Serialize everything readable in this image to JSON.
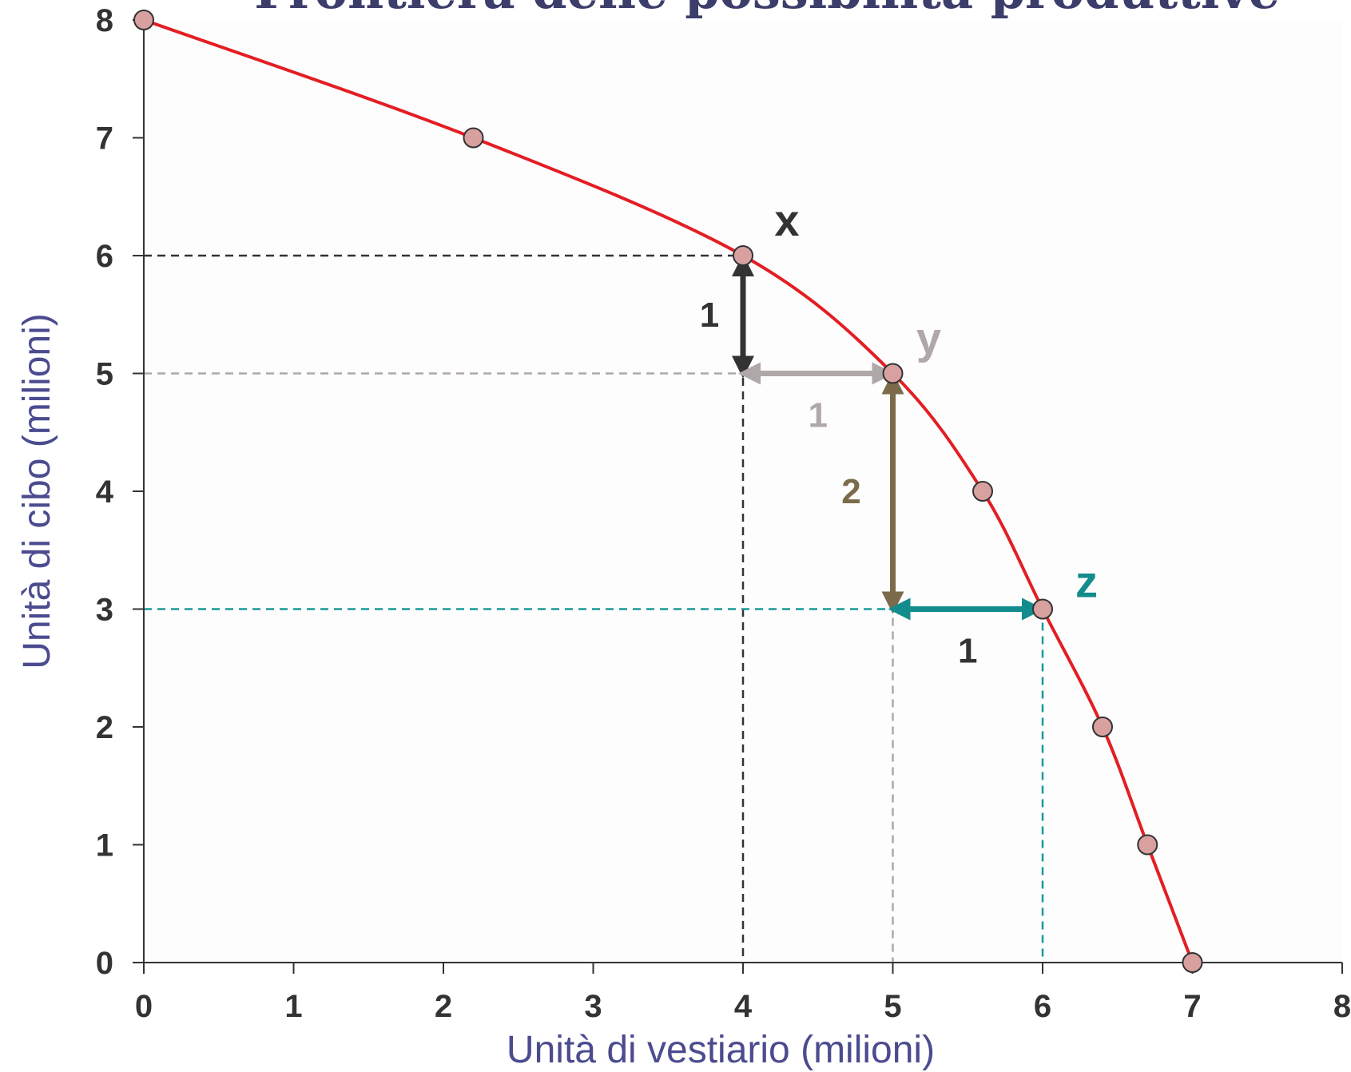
{
  "colors": {
    "curve": "#e31e24",
    "marker_fill": "#d9a0a0",
    "axis": "#333333",
    "title": "#3d3d6b",
    "axis_title": "#4b4b8f",
    "x_guide": "#333333",
    "y_guide": "#b0a8a8",
    "z_guide": "#1a9a9a",
    "arrow_dark": "#333333",
    "arrow_grey": "#b0a8a8",
    "arrow_brown": "#7b6b4b",
    "arrow_teal": "#128c8c"
  },
  "chart_data": {
    "type": "line",
    "title": "Frontiera delle possibilità produttive",
    "xlabel": "Unità di vestiario (milioni)",
    "ylabel": "Unità di cibo (milioni)",
    "xlim": [
      0,
      8
    ],
    "ylim": [
      0,
      8
    ],
    "xticks": [
      "0",
      "1",
      "2",
      "3",
      "4",
      "5",
      "6",
      "7",
      "8"
    ],
    "yticks": [
      "0",
      "1",
      "2",
      "3",
      "4",
      "5",
      "6",
      "7",
      "8"
    ],
    "grid": false,
    "series": [
      {
        "values": [
          {
            "x": 0,
            "y": 8
          },
          {
            "x": 2.2,
            "y": 7
          },
          {
            "x": 4,
            "y": 6
          },
          {
            "x": 5,
            "y": 5
          },
          {
            "x": 5.6,
            "y": 4
          },
          {
            "x": 6,
            "y": 3
          },
          {
            "x": 6.4,
            "y": 2
          },
          {
            "x": 6.7,
            "y": 1
          },
          {
            "x": 7,
            "y": 0
          }
        ]
      }
    ],
    "annotations": {
      "points": [
        {
          "label": "x",
          "x": 4,
          "y": 6
        },
        {
          "label": "y",
          "x": 5,
          "y": 5
        },
        {
          "label": "z",
          "x": 6,
          "y": 3
        }
      ],
      "arrows": [
        {
          "label": "1",
          "from": [
            4,
            6
          ],
          "to": [
            4,
            5
          ],
          "orientation": "vertical"
        },
        {
          "label": "1",
          "from": [
            4,
            5
          ],
          "to": [
            5,
            5
          ],
          "orientation": "horizontal"
        },
        {
          "label": "2",
          "from": [
            5,
            5
          ],
          "to": [
            5,
            3
          ],
          "orientation": "vertical"
        },
        {
          "label": "1",
          "from": [
            5,
            3
          ],
          "to": [
            6,
            3
          ],
          "orientation": "horizontal"
        }
      ]
    }
  }
}
